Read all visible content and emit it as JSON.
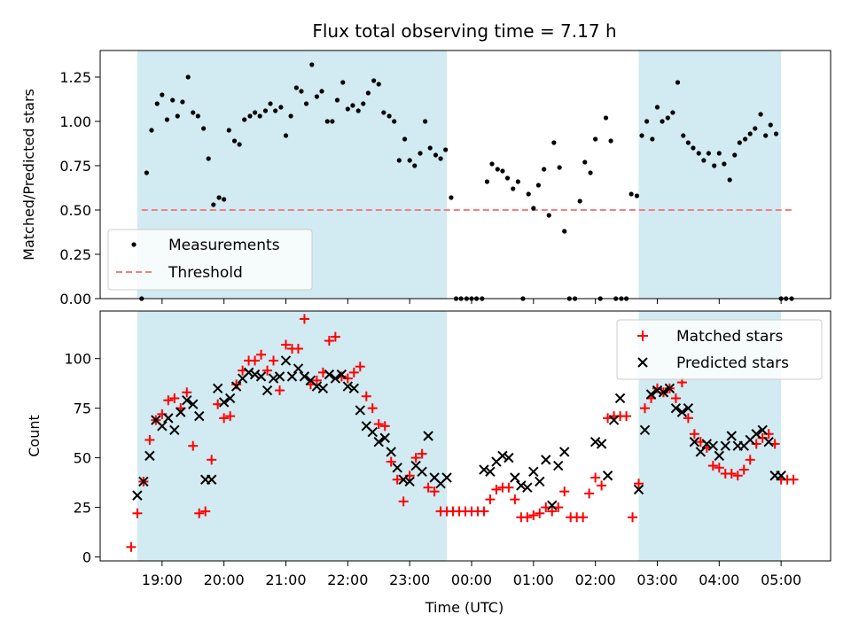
{
  "chart_data": [
    {
      "type": "scatter",
      "title": "Flux total observing time = 7.17 h",
      "ylabel": "Matched/Predicted stars",
      "xlabel": "",
      "x_range_hours": [
        18.0,
        29.8
      ],
      "ylim": [
        0,
        1.4
      ],
      "yticks": [
        0,
        0.25,
        0.5,
        0.75,
        1.0,
        1.25
      ],
      "ytick_labels": [
        "0.00",
        "0.25",
        "0.50",
        "0.75",
        "1.00",
        "1.25"
      ],
      "legend": {
        "position": "bottom-left",
        "measurements_label": "Measurements",
        "threshold_label": "Threshold"
      },
      "threshold": {
        "value": 0.5,
        "x_start": 18.67,
        "x_end": 29.2,
        "color": "#f08080"
      },
      "observing_windows": [
        {
          "start": 18.6,
          "end": 23.6
        },
        {
          "start": 26.7,
          "end": 29.0
        }
      ],
      "window_color": "#add8e6",
      "series": [
        {
          "name": "Measurements",
          "color": "#000000",
          "x": [
            18.67,
            18.75,
            18.83,
            18.92,
            19.0,
            19.08,
            19.17,
            19.25,
            19.33,
            19.42,
            19.5,
            19.58,
            19.67,
            19.75,
            19.83,
            19.92,
            20.0,
            20.08,
            20.17,
            20.25,
            20.33,
            20.42,
            20.5,
            20.58,
            20.67,
            20.75,
            20.83,
            20.92,
            21.0,
            21.08,
            21.17,
            21.25,
            21.33,
            21.42,
            21.5,
            21.58,
            21.67,
            21.75,
            21.83,
            21.92,
            22.0,
            22.08,
            22.17,
            22.25,
            22.33,
            22.42,
            22.5,
            22.58,
            22.67,
            22.75,
            22.83,
            22.92,
            23.0,
            23.08,
            23.17,
            23.25,
            23.33,
            23.42,
            23.5,
            23.58,
            23.67,
            23.75,
            23.83,
            23.92,
            24.0,
            24.08,
            24.17,
            24.25,
            24.33,
            24.42,
            24.5,
            24.58,
            24.67,
            24.75,
            24.83,
            24.92,
            25.0,
            25.08,
            25.17,
            25.25,
            25.33,
            25.42,
            25.5,
            25.58,
            25.67,
            25.75,
            25.83,
            25.92,
            26.0,
            26.08,
            26.17,
            26.25,
            26.33,
            26.42,
            26.5,
            26.58,
            26.67,
            26.75,
            26.83,
            26.92,
            27.0,
            27.08,
            27.17,
            27.25,
            27.33,
            27.42,
            27.5,
            27.58,
            27.67,
            27.75,
            27.83,
            27.92,
            28.0,
            28.08,
            28.17,
            28.25,
            28.33,
            28.42,
            28.5,
            28.58,
            28.67,
            28.75,
            28.83,
            28.92,
            29.0,
            29.08,
            29.17
          ],
          "y": [
            0.0,
            0.71,
            0.95,
            1.1,
            1.15,
            1.01,
            1.12,
            1.03,
            1.11,
            1.25,
            1.05,
            1.03,
            0.96,
            0.79,
            0.53,
            0.57,
            0.56,
            0.95,
            0.89,
            0.87,
            1.01,
            1.03,
            1.05,
            1.03,
            1.06,
            1.1,
            1.06,
            1.08,
            0.92,
            1.03,
            1.19,
            1.17,
            1.1,
            1.32,
            1.14,
            1.17,
            1.0,
            1.0,
            1.12,
            1.22,
            1.07,
            1.09,
            1.06,
            1.1,
            1.16,
            1.23,
            1.21,
            1.05,
            1.03,
            1.0,
            0.78,
            0.9,
            0.78,
            0.75,
            0.82,
            1.0,
            0.85,
            0.81,
            0.79,
            0.84,
            0.57,
            0.0,
            0.0,
            0.0,
            0.0,
            0.0,
            0.0,
            0.66,
            0.76,
            0.73,
            0.72,
            0.68,
            0.62,
            0.66,
            0.0,
            0.59,
            0.51,
            0.64,
            0.73,
            0.47,
            0.88,
            0.74,
            0.38,
            0.0,
            0.0,
            0.55,
            0.77,
            0.71,
            0.9,
            0.0,
            1.02,
            0.89,
            0.0,
            0.0,
            0.0,
            0.59,
            0.58,
            0.92,
            1.0,
            0.9,
            1.08,
            1.0,
            1.02,
            1.05,
            1.22,
            0.92,
            0.88,
            0.85,
            0.82,
            0.78,
            0.82,
            0.75,
            0.82,
            0.76,
            0.67,
            0.81,
            0.88,
            0.9,
            0.93,
            0.96,
            1.04,
            0.92,
            0.98,
            0.93,
            0.0,
            0.0,
            0.0
          ]
        }
      ]
    },
    {
      "type": "scatter",
      "title": "",
      "ylabel": "Count",
      "xlabel": "Time (UTC)",
      "x_range_hours": [
        18.0,
        29.8
      ],
      "ylim": [
        -2,
        124
      ],
      "yticks": [
        0,
        25,
        50,
        75,
        100
      ],
      "ytick_labels": [
        "0",
        "25",
        "50",
        "75",
        "100"
      ],
      "xticks": [
        19,
        20,
        21,
        22,
        23,
        24,
        25,
        26,
        27,
        28,
        29
      ],
      "xtick_labels": [
        "19:00",
        "20:00",
        "21:00",
        "22:00",
        "23:00",
        "00:00",
        "01:00",
        "02:00",
        "03:00",
        "04:00",
        "05:00"
      ],
      "legend": {
        "position": "top-right",
        "matched_label": "Matched stars",
        "predicted_label": "Predicted stars"
      },
      "observing_windows": [
        {
          "start": 18.6,
          "end": 23.6
        },
        {
          "start": 26.7,
          "end": 29.0
        }
      ],
      "window_color": "#add8e6",
      "series": [
        {
          "name": "Matched stars",
          "marker": "plus",
          "color": "#ff0000",
          "x": [
            18.5,
            18.6,
            18.7,
            18.8,
            18.9,
            19.0,
            19.1,
            19.2,
            19.3,
            19.4,
            19.5,
            19.6,
            19.7,
            19.8,
            19.9,
            20.0,
            20.1,
            20.2,
            20.3,
            20.4,
            20.5,
            20.6,
            20.7,
            20.8,
            20.9,
            21.0,
            21.1,
            21.2,
            21.3,
            21.4,
            21.5,
            21.6,
            21.7,
            21.8,
            21.9,
            22.0,
            22.1,
            22.2,
            22.3,
            22.4,
            22.5,
            22.6,
            22.7,
            22.8,
            22.9,
            23.0,
            23.1,
            23.2,
            23.3,
            23.4,
            23.5,
            23.6,
            23.7,
            23.8,
            23.9,
            24.0,
            24.1,
            24.2,
            24.3,
            24.4,
            24.5,
            24.6,
            24.7,
            24.8,
            24.9,
            25.0,
            25.1,
            25.2,
            25.3,
            25.4,
            25.5,
            25.6,
            25.7,
            25.8,
            25.9,
            26.0,
            26.1,
            26.2,
            26.3,
            26.4,
            26.5,
            26.6,
            26.7,
            26.8,
            26.9,
            27.0,
            27.1,
            27.2,
            27.3,
            27.4,
            27.5,
            27.6,
            27.7,
            27.8,
            27.9,
            28.0,
            28.1,
            28.2,
            28.3,
            28.4,
            28.5,
            28.6,
            28.7,
            28.8,
            28.9,
            29.0,
            29.1,
            29.2
          ],
          "y": [
            5,
            22,
            38,
            59,
            69,
            72,
            79,
            80,
            75,
            83,
            56,
            22,
            23,
            49,
            77,
            70,
            71,
            87,
            94,
            99,
            99,
            102,
            94,
            99,
            84,
            107,
            105,
            105,
            120,
            87,
            89,
            93,
            109,
            111,
            91,
            90,
            93,
            96,
            81,
            75,
            67,
            66,
            48,
            39,
            28,
            41,
            50,
            52,
            35,
            33,
            23,
            23,
            23,
            23,
            23,
            23,
            23,
            23,
            29,
            34,
            35,
            35,
            29,
            20,
            20,
            21,
            22,
            25,
            23,
            25,
            33,
            20,
            20,
            20,
            32,
            40,
            36,
            70,
            71,
            71,
            71,
            20,
            37,
            75,
            80,
            85,
            83,
            85,
            80,
            88,
            70,
            62,
            58,
            55,
            46,
            45,
            42,
            42,
            41,
            44,
            49,
            57,
            60,
            62,
            57,
            39,
            39,
            39
          ]
        },
        {
          "name": "Predicted stars",
          "marker": "cross",
          "color": "#000000",
          "x": [
            18.6,
            18.7,
            18.8,
            18.9,
            19.0,
            19.1,
            19.2,
            19.3,
            19.4,
            19.5,
            19.6,
            19.7,
            19.8,
            19.9,
            20.0,
            20.1,
            20.2,
            20.3,
            20.4,
            20.5,
            20.6,
            20.7,
            20.8,
            20.9,
            21.0,
            21.1,
            21.2,
            21.3,
            21.4,
            21.5,
            21.6,
            21.7,
            21.8,
            21.9,
            22.0,
            22.1,
            22.2,
            22.3,
            22.4,
            22.5,
            22.6,
            22.7,
            22.8,
            22.9,
            23.0,
            23.1,
            23.2,
            23.3,
            23.4,
            23.5,
            23.6,
            24.2,
            24.3,
            24.4,
            24.5,
            24.6,
            24.7,
            24.8,
            24.9,
            25.0,
            25.1,
            25.2,
            25.3,
            25.4,
            25.5,
            26.0,
            26.1,
            26.2,
            26.3,
            26.4,
            26.7,
            26.8,
            26.9,
            27.0,
            27.1,
            27.2,
            27.3,
            27.4,
            27.5,
            27.6,
            27.7,
            27.8,
            27.9,
            28.0,
            28.1,
            28.2,
            28.3,
            28.4,
            28.5,
            28.6,
            28.7,
            28.8,
            28.9,
            29.0
          ],
          "y": [
            31,
            38,
            51,
            69,
            66,
            70,
            64,
            73,
            79,
            77,
            71,
            39,
            39,
            85,
            78,
            80,
            86,
            90,
            93,
            92,
            91,
            84,
            90,
            91,
            99,
            91,
            95,
            91,
            89,
            86,
            85,
            92,
            90,
            92,
            86,
            85,
            74,
            66,
            63,
            58,
            60,
            53,
            45,
            39,
            38,
            46,
            43,
            61,
            40,
            37,
            40,
            44,
            43,
            48,
            51,
            50,
            40,
            36,
            35,
            43,
            38,
            49,
            26,
            46,
            53,
            58,
            57,
            41,
            69,
            80,
            34,
            64,
            82,
            84,
            83,
            85,
            75,
            73,
            75,
            58,
            53,
            57,
            56,
            51,
            56,
            61,
            56,
            56,
            59,
            62,
            64,
            58,
            41,
            41
          ]
        }
      ]
    }
  ]
}
